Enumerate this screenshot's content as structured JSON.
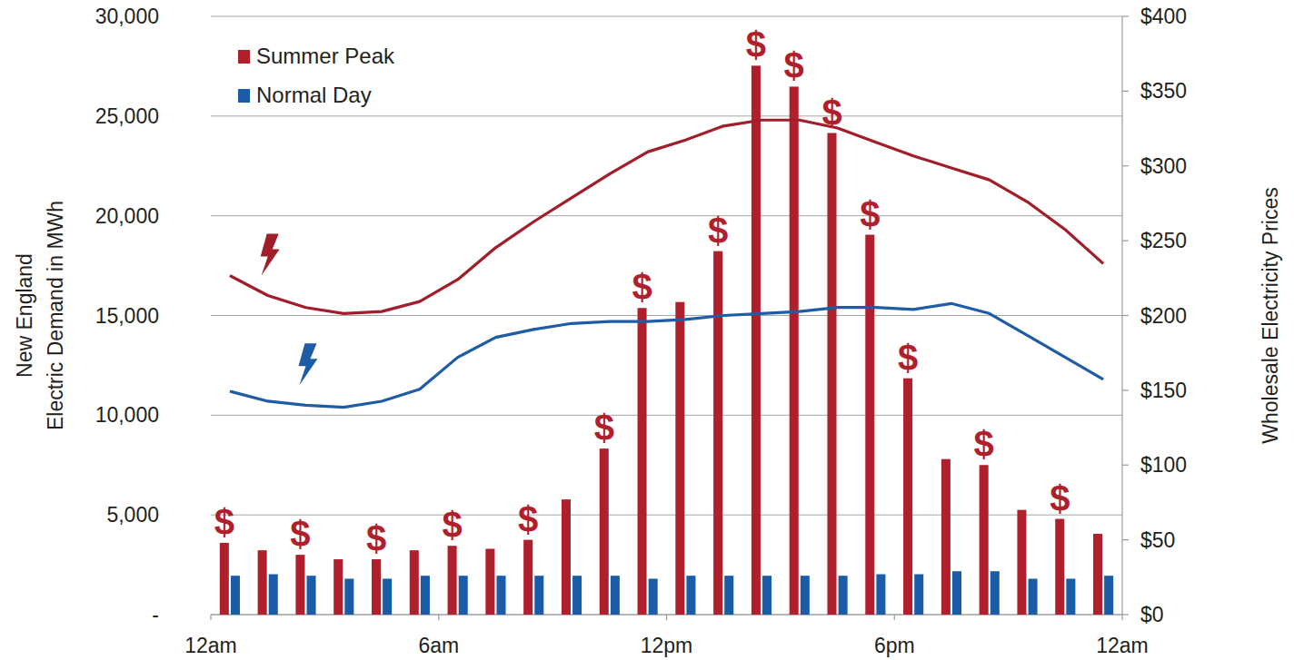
{
  "chart_data": {
    "type": "bar",
    "x": [
      0.5,
      1.5,
      2.5,
      3.5,
      4.5,
      5.5,
      6.5,
      7.5,
      8.5,
      9.5,
      10.5,
      11.5,
      12.5,
      13.5,
      14.5,
      15.5,
      16.5,
      17.5,
      18.5,
      19.5,
      20.5,
      21.5,
      22.5,
      23.5
    ],
    "xlim": [
      0,
      24
    ],
    "xticks": [
      {
        "value": 0,
        "label": "12am"
      },
      {
        "value": 6,
        "label": "6am"
      },
      {
        "value": 12,
        "label": "12pm"
      },
      {
        "value": 18,
        "label": "6pm"
      },
      {
        "value": 24,
        "label": "12am"
      }
    ],
    "ylim": [
      0,
      30000
    ],
    "yticks": [
      {
        "value": 0,
        "label": "-"
      },
      {
        "value": 5000,
        "label": "5,000"
      },
      {
        "value": 10000,
        "label": "10,000"
      },
      {
        "value": 15000,
        "label": "15,000"
      },
      {
        "value": 20000,
        "label": "20,000"
      },
      {
        "value": 25000,
        "label": "25,000"
      },
      {
        "value": 30000,
        "label": "30,000"
      }
    ],
    "y2lim": [
      0,
      400
    ],
    "y2ticks": [
      {
        "value": 0,
        "label": "$0"
      },
      {
        "value": 50,
        "label": "$50"
      },
      {
        "value": 100,
        "label": "$100"
      },
      {
        "value": 150,
        "label": "$150"
      },
      {
        "value": 200,
        "label": "$200"
      },
      {
        "value": 250,
        "label": "$250"
      },
      {
        "value": 300,
        "label": "$300"
      },
      {
        "value": 350,
        "label": "$350"
      },
      {
        "value": 400,
        "label": "$400"
      }
    ],
    "y_label": "New England\nElectric Demand in MWh",
    "y2_label": "Wholesale Electricity Prices",
    "grid": true,
    "legend": "upper left",
    "series": [
      {
        "name": "Summer Peak",
        "type": "bar",
        "axis": "y2",
        "color": "#b01f2c",
        "values": [
          48,
          43,
          40,
          37,
          37,
          43,
          46,
          44,
          50,
          77,
          111,
          205,
          209,
          243,
          367,
          353,
          322,
          254,
          158,
          104,
          100,
          70,
          64,
          54
        ],
        "annotations": [
          "$",
          null,
          "$",
          null,
          "$",
          null,
          "$",
          null,
          "$",
          null,
          "$",
          "$",
          null,
          "$",
          "$",
          "$",
          "$",
          "$",
          "$",
          null,
          "$",
          null,
          "$",
          null
        ]
      },
      {
        "name": "Normal Day",
        "type": "bar",
        "axis": "y2",
        "color": "#1b5ca8",
        "values": [
          26,
          27,
          26,
          24,
          24,
          26,
          26,
          26,
          26,
          26,
          26,
          24,
          26,
          26,
          26,
          26,
          26,
          27,
          27,
          29,
          29,
          24,
          24,
          26
        ]
      },
      {
        "type": "line",
        "color": "#a11d29",
        "values": [
          17000,
          16000,
          15400,
          15100,
          15200,
          15700,
          16800,
          18400,
          19700,
          20900,
          22100,
          23200,
          23800,
          24500,
          24800,
          24800,
          24400,
          23700,
          23000,
          22400,
          21800,
          20700,
          19300,
          17600
        ]
      },
      {
        "type": "line",
        "color": "#1f5ca6",
        "values": [
          11200,
          10700,
          10500,
          10400,
          10700,
          11300,
          12900,
          13900,
          14300,
          14600,
          14700,
          14700,
          14800,
          15000,
          15100,
          15200,
          15400,
          15400,
          15300,
          15600,
          15100,
          14000,
          12900,
          11800
        ]
      }
    ]
  }
}
